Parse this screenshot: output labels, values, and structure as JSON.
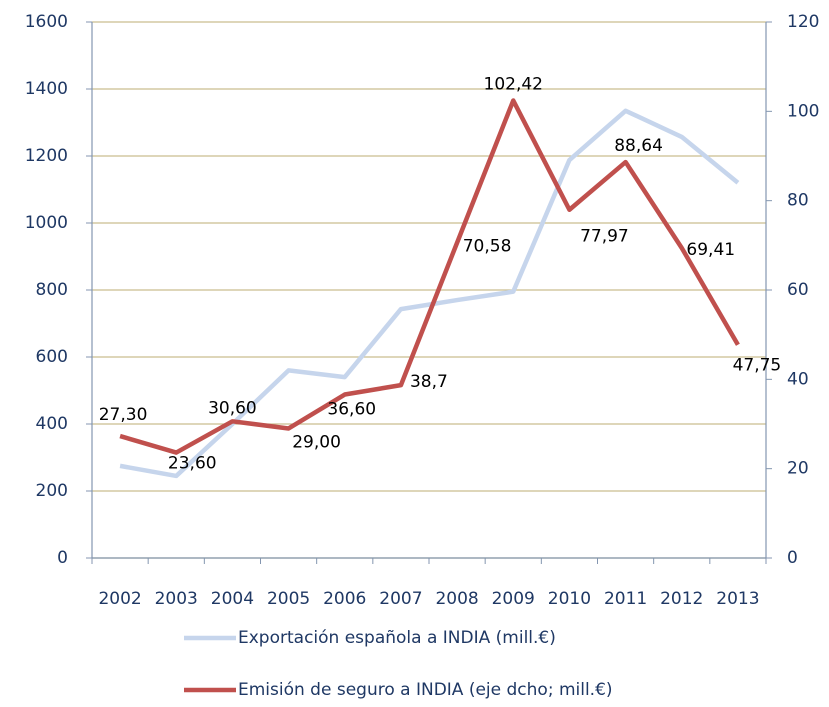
{
  "chart_data": {
    "type": "line",
    "categories": [
      "2002",
      "2003",
      "2004",
      "2005",
      "2006",
      "2007",
      "2008",
      "2009",
      "2010",
      "2011",
      "2012",
      "2013"
    ],
    "series": [
      {
        "name": "Exportación española a INDIA (mill.€)",
        "color": "#c6d5ec",
        "values": [
          275,
          245,
          400,
          560,
          540,
          743,
          770,
          795,
          1188,
          1335,
          1257,
          1120
        ]
      },
      {
        "name": "Emisión de seguro a INDIA (eje dcho; mill.€)",
        "color": "#c0504d",
        "axis": "y2",
        "values": [
          27.3,
          23.6,
          30.6,
          29.0,
          36.6,
          38.7,
          70.58,
          102.42,
          77.97,
          88.64,
          69.41,
          47.75
        ],
        "value_labels": [
          "27,30",
          "23,60",
          "30,60",
          "29,00",
          "36,60",
          "38,7",
          "70,58",
          "102,42",
          "77,97",
          "88,64",
          "69,41",
          "47,75"
        ]
      }
    ],
    "ylim": [
      0,
      1600
    ],
    "yticks": [
      0,
      200,
      400,
      600,
      800,
      1000,
      1200,
      1400,
      1600
    ],
    "y2lim": [
      0,
      120
    ],
    "y2ticks": [
      0,
      20,
      40,
      60,
      80,
      100,
      120
    ],
    "grid": true,
    "legend": "bottom"
  }
}
